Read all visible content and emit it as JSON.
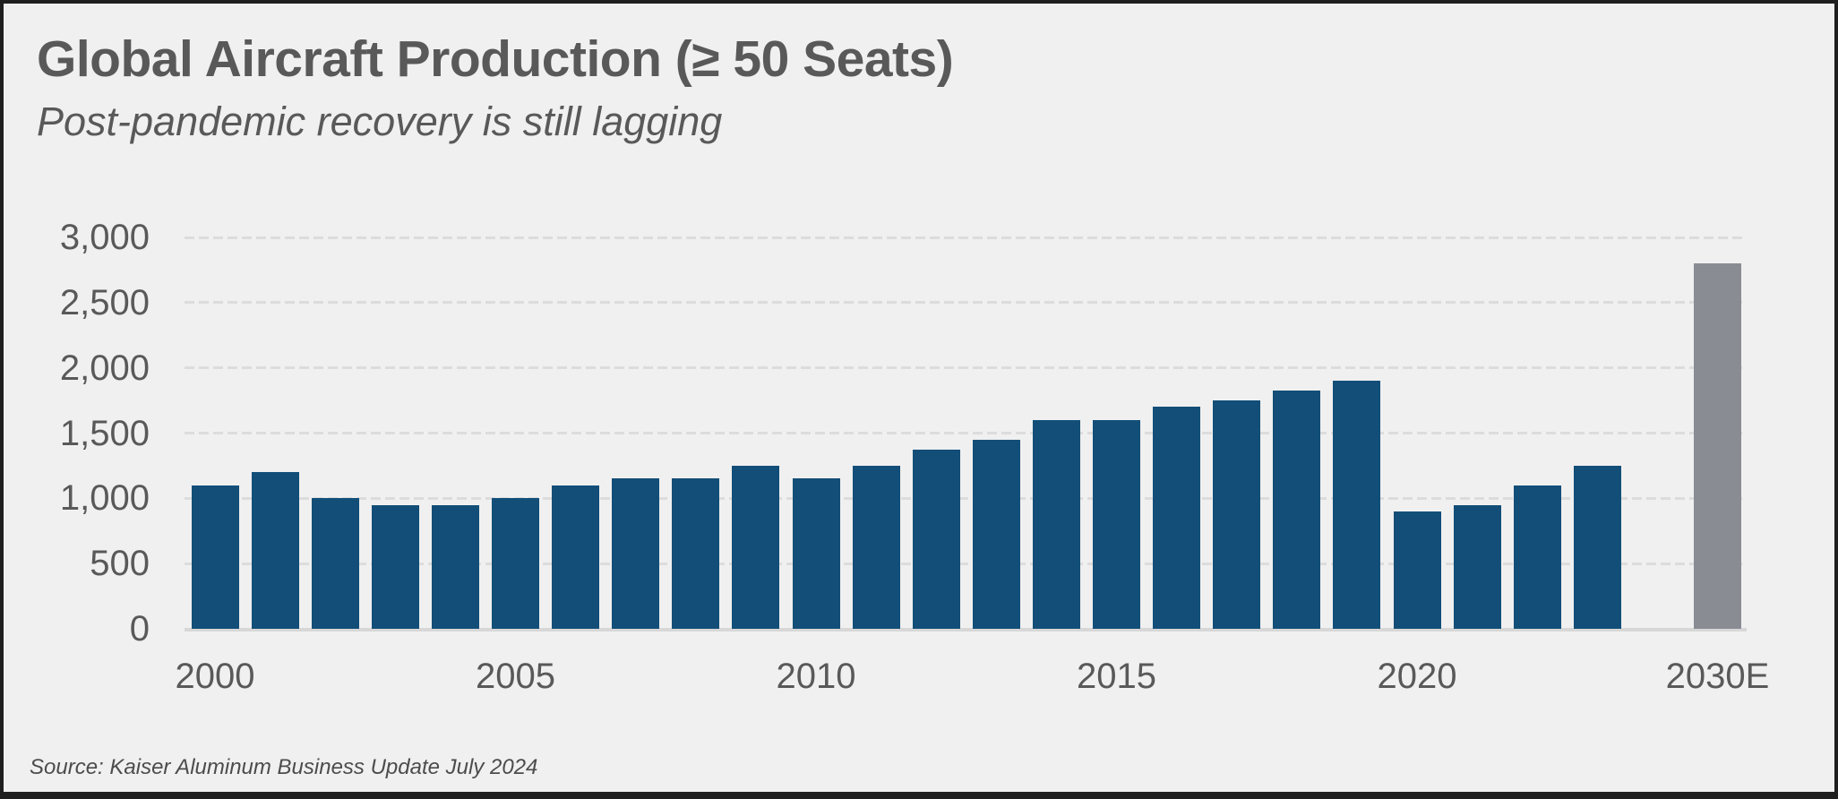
{
  "chart_data": {
    "type": "bar",
    "title": "Global Aircraft Production (≥ 50 Seats)",
    "subtitle": "Post-pandemic recovery is still lagging",
    "source": "Source: Kaiser Aluminum Business Update July 2024",
    "categories": [
      "2000",
      "2001",
      "2002",
      "2003",
      "2004",
      "2005",
      "2006",
      "2007",
      "2008",
      "2009",
      "2010",
      "2011",
      "2012",
      "2013",
      "2014",
      "2015",
      "2016",
      "2017",
      "2018",
      "2019",
      "2020",
      "2021",
      "2022",
      "2023",
      "2030E"
    ],
    "values": [
      1100,
      1200,
      1000,
      950,
      950,
      1000,
      1100,
      1150,
      1150,
      1250,
      1150,
      1250,
      1375,
      1450,
      1600,
      1600,
      1700,
      1750,
      1825,
      1900,
      900,
      950,
      1100,
      1250,
      2800
    ],
    "estimate_category": "2030E",
    "xlabel": "",
    "ylabel": "",
    "ylim": [
      0,
      3000
    ],
    "yticks": [
      0,
      500,
      1000,
      1500,
      2000,
      2500,
      3000
    ],
    "ytick_labels": [
      "0",
      "500",
      "1,000",
      "1,500",
      "2,000",
      "2,500",
      "3,000"
    ],
    "xtick_labels": [
      "2000",
      "2005",
      "2010",
      "2015",
      "2020",
      "2030E"
    ],
    "grid": "horizontal-dashed",
    "legend": "none",
    "colors": {
      "bar_actual": "#124e78",
      "bar_estimate": "#8a8c94",
      "text": "#595959",
      "gridline": "#dcdcdc",
      "baseline": "#d7d7d7",
      "background": "#f0f0f0",
      "frame_border": "#1f1f1f"
    }
  }
}
